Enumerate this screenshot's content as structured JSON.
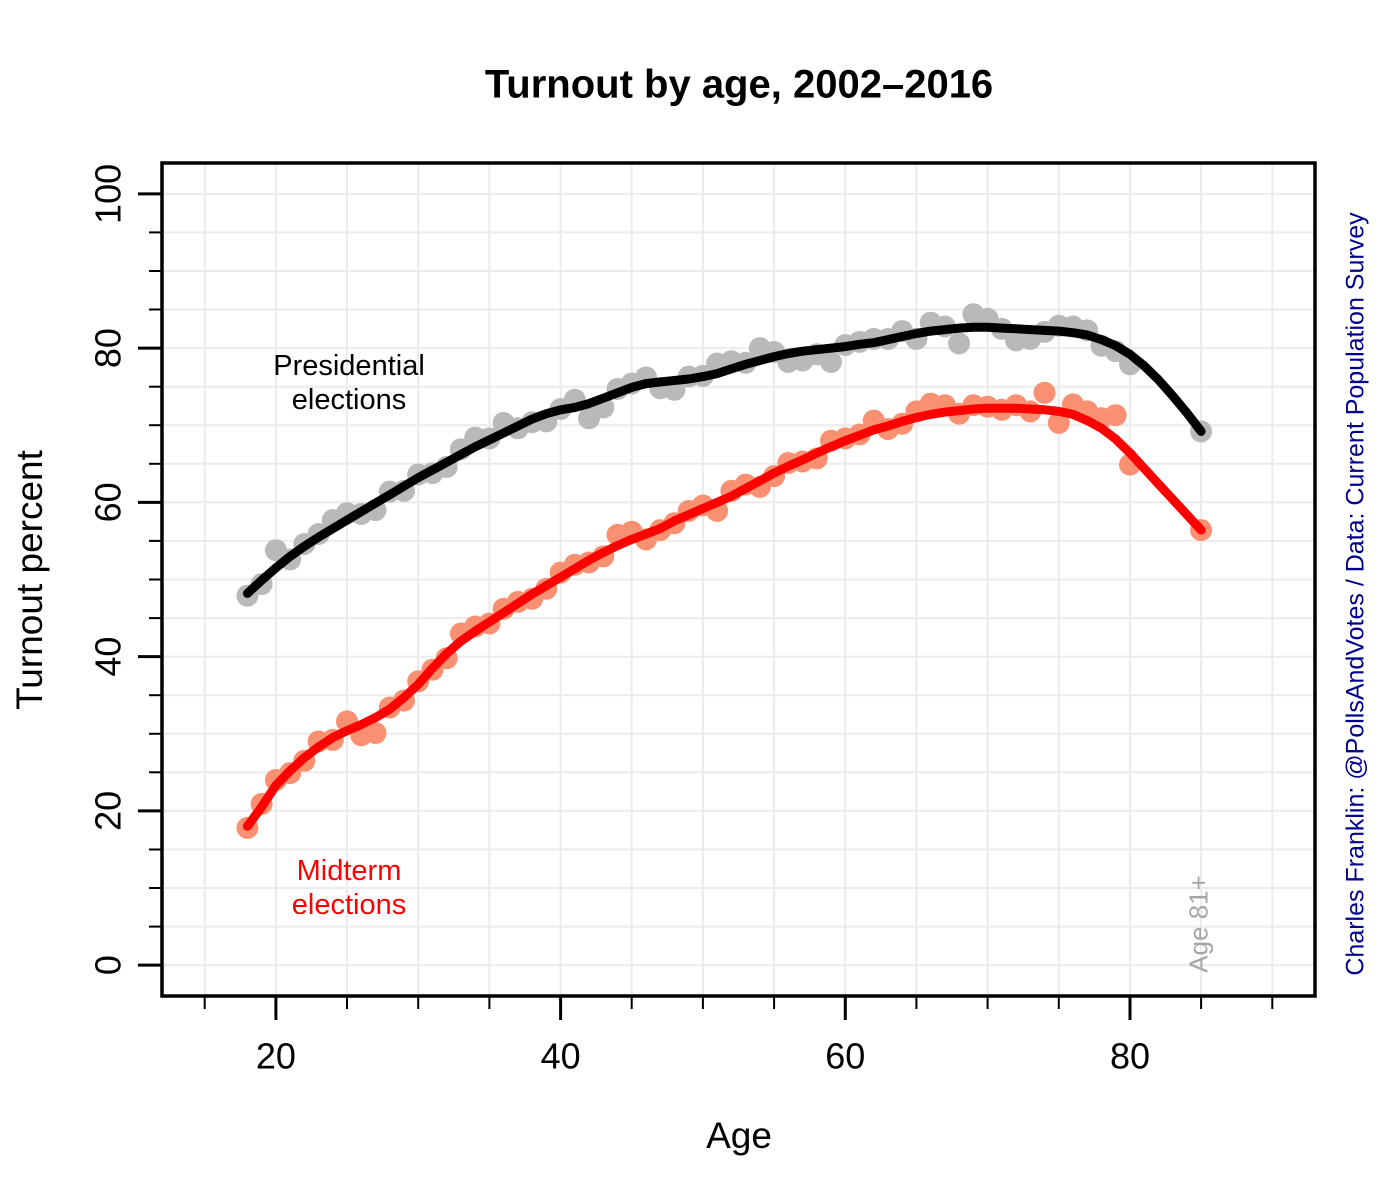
{
  "title": "Turnout by age, 2002–2016",
  "caption_right": "Charles Franklin: @PollsAndVotes / Data: Current Population Survey",
  "x_axis": {
    "label": "Age",
    "major_tick_labels": [
      "20",
      "40",
      "60",
      "80"
    ],
    "major_tick_values": [
      20,
      40,
      60,
      80
    ],
    "minor_step": 5,
    "grid_min": 15,
    "grid_max": 90
  },
  "y_axis": {
    "label": "Turnout percent",
    "major_tick_labels": [
      "0",
      "20",
      "40",
      "60",
      "80",
      "100"
    ],
    "major_tick_values": [
      0,
      20,
      40,
      60,
      80,
      100
    ],
    "minor_step": 5,
    "grid_min": 0,
    "grid_max": 100
  },
  "annotations": {
    "presidential_line1": "Presidential",
    "presidential_line2": "elections",
    "midterm_line1": "Midterm",
    "midterm_line2": "elections",
    "last_group_label": "Age 81+"
  },
  "colors": {
    "presidential_points": "#b9b9b9",
    "presidential_line": "#000000",
    "midterm_points": "#fa9072",
    "midterm_line": "#ff0000",
    "grid": "#ebebeb",
    "box": "#000000",
    "caption": "#00008b",
    "age_label": "#a6a6a6"
  },
  "chart_data": {
    "type": "scatter",
    "title": "Turnout by age, 2002–2016",
    "xlabel": "Age",
    "ylabel": "Turnout percent",
    "xlim": [
      12,
      93
    ],
    "ylim": [
      -4,
      104
    ],
    "grid": "on",
    "x": [
      18,
      19,
      20,
      21,
      22,
      23,
      24,
      25,
      26,
      27,
      28,
      29,
      30,
      31,
      32,
      33,
      34,
      35,
      36,
      37,
      38,
      39,
      40,
      41,
      42,
      43,
      44,
      45,
      46,
      47,
      48,
      49,
      50,
      51,
      52,
      53,
      54,
      55,
      56,
      57,
      58,
      59,
      60,
      61,
      62,
      63,
      64,
      65,
      66,
      67,
      68,
      69,
      70,
      71,
      72,
      73,
      74,
      75,
      76,
      77,
      78,
      79,
      80,
      85
    ],
    "series": [
      {
        "name": "Presidential elections",
        "point_color": "#b9b9b9",
        "line_color": "#000000",
        "points": [
          47.9,
          49.4,
          53.8,
          52.6,
          54.6,
          55.9,
          57.7,
          58.6,
          58.5,
          59.0,
          61.4,
          61.5,
          63.6,
          63.8,
          64.6,
          66.9,
          68.4,
          68.3,
          70.3,
          69.6,
          70.4,
          70.5,
          72.1,
          73.3,
          70.9,
          72.3,
          74.7,
          75.4,
          76.2,
          74.8,
          74.6,
          76.3,
          76.4,
          78.0,
          78.3,
          78.1,
          80.0,
          79.5,
          78.2,
          78.4,
          79.2,
          78.2,
          80.4,
          80.8,
          81.2,
          81.2,
          82.2,
          81.2,
          83.3,
          82.8,
          80.6,
          84.4,
          83.8,
          82.5,
          81.0,
          81.2,
          82.1,
          82.9,
          82.8,
          82.3,
          80.3,
          79.6,
          77.9,
          69.2
        ],
        "smooth_x": [
          18,
          19,
          20,
          21,
          22,
          23,
          24,
          25,
          26,
          27,
          28,
          29,
          30,
          31,
          32,
          33,
          34,
          35,
          36,
          37,
          38,
          39,
          40,
          41,
          42,
          43,
          44,
          45,
          46,
          47,
          48,
          49,
          50,
          51,
          52,
          53,
          54,
          55,
          56,
          57,
          58,
          59,
          60,
          61,
          62,
          63,
          64,
          65,
          66,
          67,
          68,
          69,
          70,
          71,
          72,
          73,
          74,
          75,
          76,
          77,
          78,
          79,
          80,
          81,
          82,
          83,
          84,
          85
        ],
        "smooth": [
          48.2,
          49.9,
          51.5,
          53.0,
          54.3,
          55.5,
          56.6,
          57.7,
          58.8,
          59.9,
          61.0,
          62.1,
          63.2,
          64.2,
          65.2,
          66.2,
          67.2,
          68.1,
          69.0,
          69.9,
          70.8,
          71.5,
          72.0,
          72.3,
          72.8,
          73.5,
          74.2,
          74.9,
          75.4,
          75.6,
          75.8,
          76.0,
          76.3,
          76.7,
          77.3,
          77.9,
          78.4,
          78.9,
          79.3,
          79.6,
          79.8,
          80.0,
          80.2,
          80.5,
          80.7,
          81.1,
          81.5,
          81.9,
          82.2,
          82.4,
          82.6,
          82.7,
          82.7,
          82.6,
          82.5,
          82.4,
          82.3,
          82.2,
          82.0,
          81.7,
          81.1,
          80.3,
          79.2,
          77.7,
          75.9,
          73.8,
          71.6,
          69.2
        ]
      },
      {
        "name": "Midterm elections",
        "point_color": "#fa9072",
        "line_color": "#ff0000",
        "points": [
          17.8,
          20.9,
          24.0,
          24.9,
          26.5,
          29.0,
          29.2,
          31.6,
          29.8,
          30.1,
          33.4,
          34.3,
          36.8,
          38.3,
          39.8,
          43.0,
          43.9,
          44.3,
          46.2,
          47.1,
          47.5,
          48.8,
          50.9,
          51.9,
          52.2,
          53.0,
          55.8,
          56.2,
          55.2,
          56.4,
          57.3,
          58.9,
          59.6,
          58.9,
          61.5,
          62.3,
          62.0,
          63.4,
          65.1,
          65.3,
          65.7,
          68.0,
          68.3,
          68.8,
          70.6,
          69.5,
          70.2,
          71.8,
          72.8,
          72.6,
          71.5,
          72.6,
          72.4,
          72.0,
          72.6,
          71.8,
          74.2,
          70.3,
          72.7,
          71.8,
          70.9,
          71.3,
          64.9,
          56.4
        ],
        "smooth_x": [
          18,
          19,
          20,
          21,
          22,
          23,
          24,
          25,
          26,
          27,
          28,
          29,
          30,
          31,
          32,
          33,
          34,
          35,
          36,
          37,
          38,
          39,
          40,
          41,
          42,
          43,
          44,
          45,
          46,
          47,
          48,
          49,
          50,
          51,
          52,
          53,
          54,
          55,
          56,
          57,
          58,
          59,
          60,
          61,
          62,
          63,
          64,
          65,
          66,
          67,
          68,
          69,
          70,
          71,
          72,
          73,
          74,
          75,
          76,
          77,
          78,
          79,
          80,
          81,
          82,
          83,
          84,
          85
        ],
        "smooth": [
          18.0,
          20.5,
          23.3,
          25.2,
          26.9,
          28.3,
          29.5,
          30.4,
          31.2,
          32.1,
          33.2,
          34.7,
          36.4,
          38.5,
          40.4,
          42.0,
          43.3,
          44.5,
          45.7,
          46.9,
          48.1,
          49.2,
          50.3,
          51.4,
          52.5,
          53.5,
          54.4,
          55.2,
          55.9,
          56.6,
          57.6,
          58.4,
          59.2,
          60.0,
          60.8,
          61.8,
          62.8,
          63.8,
          64.7,
          65.5,
          66.4,
          67.2,
          68.0,
          68.7,
          69.4,
          69.9,
          70.5,
          71.0,
          71.4,
          71.7,
          71.9,
          72.1,
          72.2,
          72.2,
          72.2,
          72.1,
          72.0,
          71.8,
          71.4,
          70.6,
          69.6,
          68.2,
          66.4,
          64.4,
          62.4,
          60.4,
          58.4,
          56.4
        ]
      }
    ]
  }
}
